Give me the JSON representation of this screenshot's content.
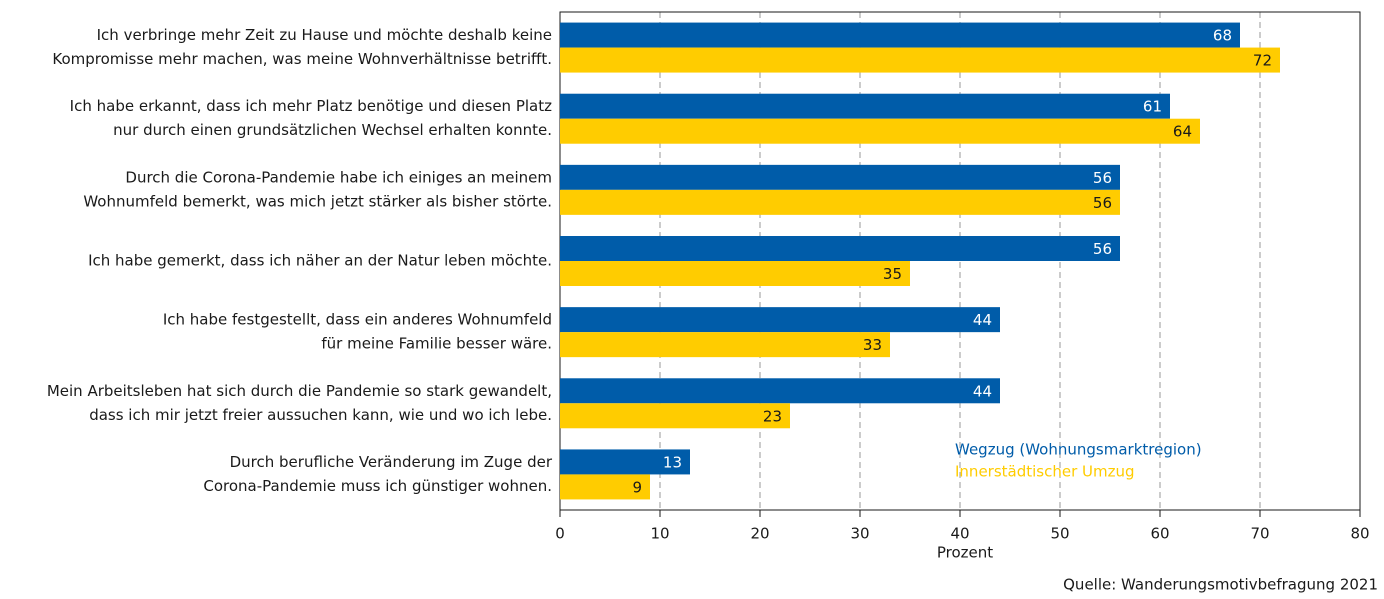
{
  "chart_data": {
    "type": "bar",
    "orientation": "horizontal",
    "categories": [
      [
        "Ich verbringe mehr Zeit zu Hause und möchte deshalb keine",
        "Kompromisse mehr machen, was meine Wohnverhältnisse betrifft."
      ],
      [
        "Ich habe erkannt, dass ich mehr Platz benötige und diesen Platz",
        "nur durch einen grundsätzlichen Wechsel erhalten konnte."
      ],
      [
        "Durch die Corona-Pandemie habe ich einiges an meinem",
        "Wohnumfeld bemerkt, was mich jetzt stärker als bisher störte."
      ],
      [
        "Ich habe gemerkt, dass ich näher an der Natur leben möchte."
      ],
      [
        "Ich habe festgestellt, dass ein anderes Wohnumfeld",
        "für meine Familie besser wäre."
      ],
      [
        "Mein Arbeitsleben hat sich durch die Pandemie so stark gewandelt,",
        "dass ich mir jetzt freier aussuchen kann, wie und wo ich lebe."
      ],
      [
        "Durch berufliche Veränderung im Zuge der",
        "Corona-Pandemie muss ich günstiger wohnen."
      ]
    ],
    "series": [
      {
        "name": "Wegzug (Wohnungsmarktregion)",
        "color": "#005ca9",
        "label_color": "#ffffff",
        "values": [
          68,
          61,
          56,
          56,
          44,
          44,
          13
        ]
      },
      {
        "name": "Innerstädtischer Umzug",
        "color": "#ffcc00",
        "label_color": "#1a1a1a",
        "values": [
          72,
          64,
          56,
          35,
          33,
          23,
          9
        ]
      }
    ],
    "xlim": [
      0,
      80
    ],
    "xticks": [
      0,
      10,
      20,
      30,
      40,
      50,
      60,
      70,
      80
    ],
    "x_label": "Prozent",
    "grid": true,
    "source": "Quelle: Wanderungsmotivbefragung 2021"
  }
}
